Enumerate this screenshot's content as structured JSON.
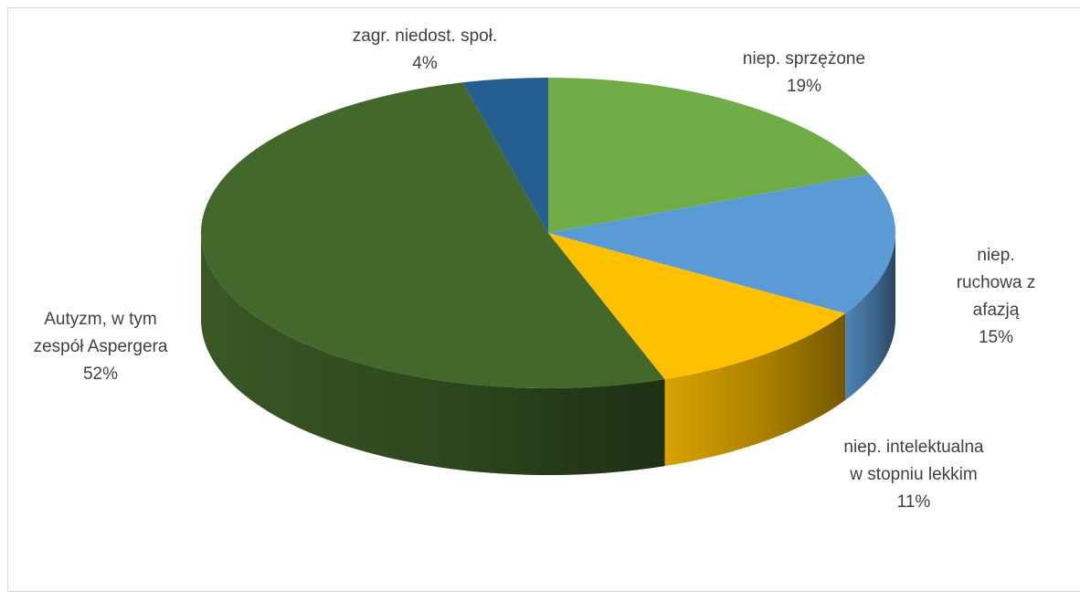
{
  "chart_data": {
    "type": "pie3d",
    "categories": [
      "niep. sprzężone",
      "niep. ruchowa z\nafazją",
      "niep. intelektualna\nw stopniu lekkim",
      "Autyzm, w tym\nzespół Aspergera",
      "zagr. niedost. społ."
    ],
    "values": [
      19,
      15,
      11,
      52,
      4
    ],
    "value_labels": [
      "19%",
      "15%",
      "11%",
      "52%",
      "4%"
    ],
    "colors": [
      "#70ad47",
      "#5b9bd5",
      "#ffc000",
      "#43682b",
      "#255e91"
    ]
  }
}
